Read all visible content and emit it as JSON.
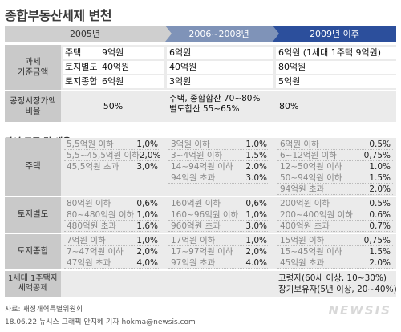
{
  "title": "종합부동산세제 변천",
  "headers": {
    "y2005": "2005년",
    "y2006": "2006~2008년",
    "y2009": "2009년 이후"
  },
  "base": {
    "label": "과세\n기준금액",
    "y2005": [
      [
        "주택",
        "9억원"
      ],
      [
        "토지별도",
        "40억원"
      ],
      [
        "토지종합",
        "6억원"
      ]
    ],
    "y2006": [
      "6억원",
      "40억원",
      "3억원"
    ],
    "y2009": [
      "6억원 (1세대 1주택 9억원)",
      "80억원",
      "5억원"
    ]
  },
  "fair": {
    "label": "공정시장가액\n비율",
    "y2005": "50%",
    "y2006": "주택, 종합합산 70~80%\n별도합산 55~65%",
    "y2009": "80%"
  },
  "section_title": "과세 표준 및 세율",
  "rates": {
    "house": {
      "label": "주택",
      "y2005": [
        [
          "5,5억원 이하",
          "1,0%"
        ],
        [
          "5,5~45,5억원 이하",
          "2,0%"
        ],
        [
          "45,5억원 초과",
          "3,0%"
        ]
      ],
      "y2006": [
        [
          "3억원 이하",
          "1.0%"
        ],
        [
          "3~4억원 이하",
          "1.5%"
        ],
        [
          "14~94억원 이하",
          "2.0%"
        ],
        [
          "94억원 초과",
          "3.0%"
        ]
      ],
      "y2009": [
        [
          "6억원 이하",
          "0.5%"
        ],
        [
          "6~12억원 이하",
          "0,75%"
        ],
        [
          "12~50억원 이하",
          "1.0%"
        ],
        [
          "50~94억원 이하",
          "1.5%"
        ],
        [
          "94억원 초과",
          "2.0%"
        ]
      ]
    },
    "land_sep": {
      "label": "토지별도",
      "y2005": [
        [
          "80억원 이하",
          "0,6%"
        ],
        [
          "80~480억원 이하",
          "1,0%"
        ],
        [
          "480억원 초과",
          "1,6%"
        ]
      ],
      "y2006": [
        [
          "160억원 이하",
          "0,6%"
        ],
        [
          "160~96억원 이하",
          "1,0%"
        ],
        [
          "960억원 초과",
          "3.0%"
        ]
      ],
      "y2009": [
        [
          "200억원 이하",
          "0.5%"
        ],
        [
          "200~400억원 이하",
          "0.6%"
        ],
        [
          "400억원 초과",
          "0.7%"
        ]
      ]
    },
    "land_comp": {
      "label": "토지종합",
      "y2005": [
        [
          "7억원 이하",
          "1,0%"
        ],
        [
          "7~47억원 이하",
          "2,0%"
        ],
        [
          "47억원 초과",
          "4,0%"
        ]
      ],
      "y2006": [
        [
          "17억원 이하",
          "1,0%"
        ],
        [
          "17~97억원 이하",
          "2,0%"
        ],
        [
          "97억원 초과",
          "4.0%"
        ]
      ],
      "y2009": [
        [
          "15억원 이하",
          "0,75%"
        ],
        [
          "15~45억원 이하",
          "1.5%"
        ],
        [
          "45억원 초과",
          "2.0%"
        ]
      ]
    }
  },
  "deduction": {
    "label": "1세대 1주택자\n세액공제",
    "y2009": [
      "고령자(60세 이상, 10~30%)",
      "장기보유자(5년 이상, 20~40%)"
    ]
  },
  "footer": {
    "source": "자료: 재정개혁특별위원회",
    "credit": "18.06.22 뉴시스 그래픽 안지혜 기자 hokma@newsis.com"
  },
  "logo": "NEWSIS",
  "colors": {
    "col2005": "#cfcfcf",
    "col2006": "#7f93b8",
    "col2009": "#2c4f9c",
    "label_bg": "#c9c9c9",
    "panel_bg": "#ebebeb"
  }
}
